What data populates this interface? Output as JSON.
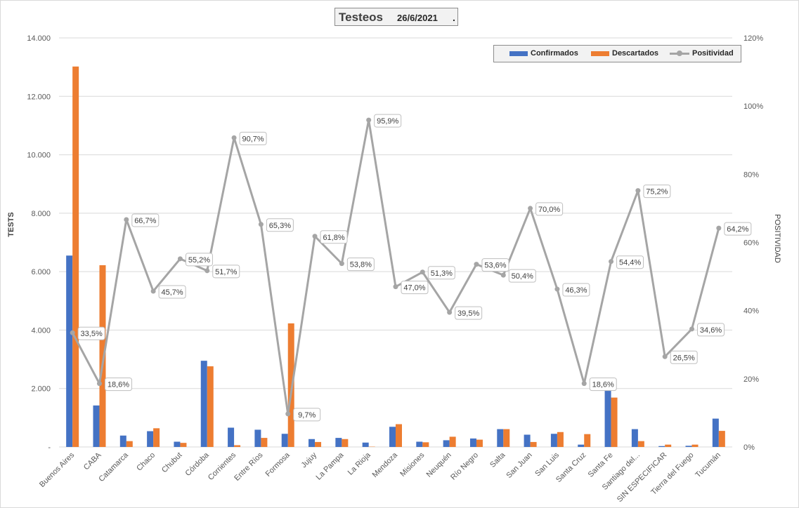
{
  "chart_data": {
    "type": "bar",
    "title": "Testeos",
    "subtitle": "26/6/2021",
    "title_suffix": ".",
    "categories": [
      "Buenos Aires",
      "CABA",
      "Catamarca",
      "Chaco",
      "Chubut",
      "Córdoba",
      "Corrientes",
      "Entre Ríos",
      "Formosa",
      "Jujuy",
      "La Pampa",
      "La Rioja",
      "Mendoza",
      "Misiones",
      "Neuquén",
      "Río Negro",
      "Salta",
      "San Juan",
      "San Luis",
      "Santa Cruz",
      "Santa Fe",
      "Santiago del...",
      "SIN ESPECIFICAR",
      "Tierra del Fuego",
      "Tucumán"
    ],
    "series": [
      {
        "name": "Confirmados",
        "type": "bar",
        "axis": "left",
        "color": "#4472c4",
        "values": [
          6550,
          1420,
          390,
          540,
          180,
          2950,
          660,
          590,
          450,
          270,
          310,
          150,
          690,
          180,
          230,
          290,
          610,
          420,
          450,
          80,
          1960,
          610,
          30,
          40,
          970
        ]
      },
      {
        "name": "Descartados",
        "type": "bar",
        "axis": "left",
        "color": "#ed7d31",
        "values": [
          13020,
          6220,
          200,
          640,
          140,
          2760,
          60,
          310,
          4230,
          170,
          270,
          10,
          780,
          160,
          350,
          250,
          610,
          170,
          510,
          440,
          1690,
          200,
          80,
          80,
          550
        ]
      },
      {
        "name": "Positividad",
        "type": "line",
        "axis": "right",
        "color": "#a5a5a5",
        "values": [
          33.5,
          18.6,
          66.7,
          45.7,
          55.2,
          51.7,
          90.7,
          65.3,
          9.7,
          61.8,
          53.8,
          95.9,
          47.0,
          51.3,
          39.5,
          53.6,
          50.4,
          70.0,
          46.3,
          18.6,
          54.4,
          75.2,
          26.5,
          34.6,
          64.2
        ],
        "labels": [
          "33,5%",
          "18,6%",
          "66,7%",
          "45,7%",
          "55,2%",
          "51,7%",
          "90,7%",
          "65,3%",
          "9,7%",
          "61,8%",
          "53,8%",
          "95,9%",
          "47,0%",
          "51,3%",
          "39,5%",
          "53,6%",
          "50,4%",
          "70,0%",
          "46,3%",
          "18,6%",
          "54,4%",
          "75,2%",
          "26,5%",
          "34,6%",
          "64,2%"
        ]
      }
    ],
    "ylabel": "TESTS",
    "y2label": "POSITIVIDAD",
    "ylim": [
      0,
      14000
    ],
    "y2lim": [
      0,
      120
    ],
    "yticks": [
      0,
      2000,
      4000,
      6000,
      8000,
      10000,
      12000,
      14000
    ],
    "ytick_labels": [
      "-",
      "2.000",
      "4.000",
      "6.000",
      "8.000",
      "10.000",
      "12.000",
      "14.000"
    ],
    "y2ticks": [
      0,
      20,
      40,
      60,
      80,
      100,
      120
    ],
    "y2tick_labels": [
      "0%",
      "20%",
      "40%",
      "60%",
      "80%",
      "100%",
      "120%"
    ],
    "grid": true,
    "legend": "top-right"
  }
}
